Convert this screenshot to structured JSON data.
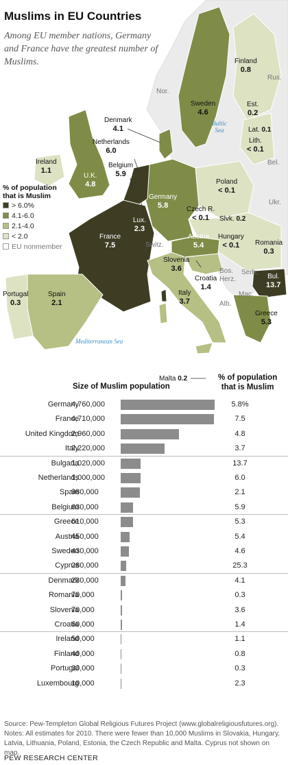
{
  "title": "Muslims in EU Countries",
  "subtitle": "Among EU member nations, Germany and France have the greatest number of Muslims.",
  "colors": {
    "gt6": "#3e3d24",
    "c4to6": "#7f8c47",
    "c2to4": "#b6bf84",
    "lt2": "#dde2c3",
    "nonmember": "#ebebeb",
    "sea": "#ffffff",
    "bar": "#8c8c8c"
  },
  "legend": {
    "title_line1": "% of population",
    "title_line2": "that is Muslim",
    "items": [
      {
        "label": "> 6.0%",
        "color": "#3e3d24"
      },
      {
        "label": "4.1-6.0",
        "color": "#7f8c47"
      },
      {
        "label": "2.1-4.0",
        "color": "#b6bf84"
      },
      {
        "label": "< 2.0",
        "color": "#dde2c3"
      },
      {
        "label": "EU nonmember",
        "color": "#ffffff"
      }
    ]
  },
  "map": {
    "labels": [
      {
        "name": "Finland",
        "value": "0.8"
      },
      {
        "name": "Sweden",
        "value": "4.6"
      },
      {
        "name": "Est.",
        "value": "0.2"
      },
      {
        "name": "Lat.",
        "value": "0.1"
      },
      {
        "name": "Lith.",
        "value": "< 0.1"
      },
      {
        "name": "Denmark",
        "value": "4.1"
      },
      {
        "name": "Netherlands",
        "value": "6.0"
      },
      {
        "name": "Belgium",
        "value": "5.9"
      },
      {
        "name": "Ireland",
        "value": "1.1"
      },
      {
        "name": "U.K.",
        "value": "4.8"
      },
      {
        "name": "Poland",
        "value": "< 0.1"
      },
      {
        "name": "Germany",
        "value": "5.8"
      },
      {
        "name": "Czech R.",
        "value": "< 0.1"
      },
      {
        "name": "Slvk.",
        "value": "0.2"
      },
      {
        "name": "Lux.",
        "value": "2.3"
      },
      {
        "name": "France",
        "value": "7.5"
      },
      {
        "name": "Austria",
        "value": "5.4"
      },
      {
        "name": "Hungary",
        "value": "< 0.1"
      },
      {
        "name": "Romania",
        "value": "0.3"
      },
      {
        "name": "Slovenia",
        "value": "3.6"
      },
      {
        "name": "Croatia",
        "value": "1.4"
      },
      {
        "name": "Bul.",
        "value": "13.7"
      },
      {
        "name": "Portugal",
        "value": "0.3"
      },
      {
        "name": "Spain",
        "value": "2.1"
      },
      {
        "name": "Italy",
        "value": "3.7"
      },
      {
        "name": "Greece",
        "value": "5.3"
      },
      {
        "name": "Malta",
        "value": "0.2"
      }
    ],
    "nonmembers": [
      "Nor.",
      "Rus.",
      "Bel.",
      "Ukr.",
      "Switz.",
      "Bos.",
      "Herz.",
      "Serb.",
      "Mac.",
      "Alb."
    ],
    "seas": [
      "Baltic Sea",
      "Mediterranean Sea"
    ]
  },
  "chart_data": {
    "type": "bar",
    "col_size_header": "Size of Muslim population",
    "col_pct_header_line1": "% of population",
    "col_pct_header_line2": "that is Muslim",
    "categories": [
      "Germany",
      "France",
      "United Kingdom",
      "Italy",
      "Bulgaria",
      "Netherlands",
      "Spain",
      "Belgium",
      "Greece",
      "Austria",
      "Sweden",
      "Cyprus",
      "Denmark",
      "Romania",
      "Slovenia",
      "Croatia",
      "Ireland",
      "Finland",
      "Portugal",
      "Luxembourg"
    ],
    "values": [
      4760000,
      4710000,
      2960000,
      2220000,
      1020000,
      1000000,
      980000,
      630000,
      610000,
      450000,
      430000,
      280000,
      230000,
      70000,
      70000,
      60000,
      50000,
      40000,
      30000,
      10000
    ],
    "value_labels": [
      "4,760,000",
      "4,710,000",
      "2,960,000",
      "2,220,000",
      "1,020,000",
      "1,000,000",
      "980,000",
      "630,000",
      "610,000",
      "450,000",
      "430,000",
      "280,000",
      "230,000",
      "70,000",
      "70,000",
      "60,000",
      "50,000",
      "40,000",
      "30,000",
      "10,000"
    ],
    "percent_labels": [
      "5.8%",
      "7.5",
      "4.8",
      "3.7",
      "13.7",
      "6.0",
      "2.1",
      "5.9",
      "5.3",
      "5.4",
      "4.6",
      "25.3",
      "4.1",
      "0.3",
      "3.6",
      "1.4",
      "1.1",
      "0.8",
      "0.3",
      "2.3"
    ],
    "xlim": [
      0,
      4760000
    ]
  },
  "source": "Source: Pew-Templeton Global Religious Futures Project (www.globalreligiousfutures.org). Notes: All estimates for 2010. There were fewer than 10,000 Muslims in Slovakia, Hungary, Latvia, Lithuania, Poland, Estonia, the Czech Republic and Malta. Cyprus not shown on map.",
  "footer": "PEW RESEARCH CENTER"
}
